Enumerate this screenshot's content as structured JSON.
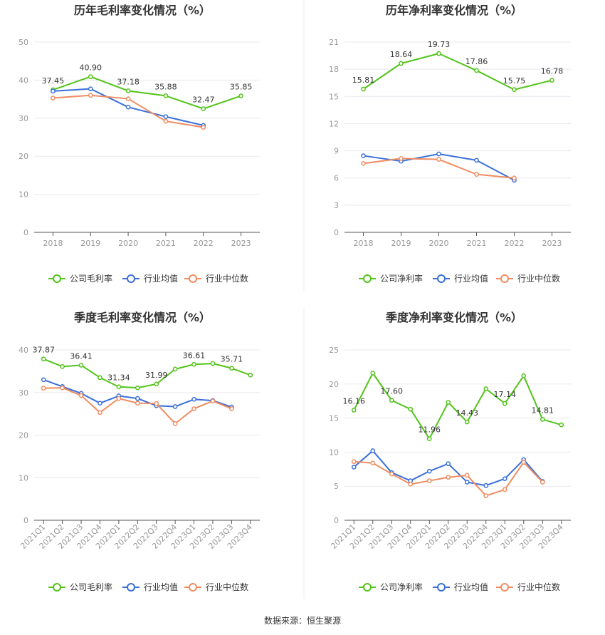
{
  "colors": {
    "company": "#52c41a",
    "avg": "#3a6fdb",
    "median": "#f08c60",
    "grid": "#e8e8f0",
    "axis": "#555555",
    "divider": "#eeeeee"
  },
  "footer": "数据来源：恒生聚源",
  "chart_data": [
    {
      "type": "line",
      "title": "历年毛利率变化情况（%）",
      "categories": [
        "2018",
        "2019",
        "2020",
        "2021",
        "2022",
        "2023"
      ],
      "y_ticks": [
        "0",
        "10",
        "20",
        "30",
        "40",
        "50"
      ],
      "ylim": [
        0,
        50
      ],
      "legend": [
        "公司毛利率",
        "行业均值",
        "行业中位数"
      ],
      "legend_position": "bottom",
      "grid": true,
      "series": [
        {
          "name": "公司毛利率",
          "values": [
            37.45,
            40.9,
            37.18,
            35.88,
            32.47,
            35.85
          ],
          "labels": [
            "37.45",
            "40.90",
            "37.18",
            "35.88",
            "32.47",
            "35.85"
          ]
        },
        {
          "name": "行业均值",
          "values": [
            37.1,
            37.7,
            32.9,
            30.4,
            28.1,
            null
          ]
        },
        {
          "name": "行业中位数",
          "values": [
            35.3,
            36.0,
            35.1,
            29.2,
            27.6,
            null
          ]
        }
      ]
    },
    {
      "type": "line",
      "title": "历年净利率变化情况（%）",
      "categories": [
        "2018",
        "2019",
        "2020",
        "2021",
        "2022",
        "2023"
      ],
      "y_ticks": [
        "0",
        "3",
        "6",
        "9",
        "12",
        "15",
        "18",
        "21"
      ],
      "ylim": [
        0,
        21
      ],
      "legend": [
        "公司净利率",
        "行业均值",
        "行业中位数"
      ],
      "legend_position": "bottom",
      "grid": true,
      "series": [
        {
          "name": "公司净利率",
          "values": [
            15.81,
            18.64,
            19.73,
            17.86,
            15.75,
            16.78
          ],
          "labels": [
            "15.81",
            "18.64",
            "19.73",
            "17.86",
            "15.75",
            "16.78"
          ]
        },
        {
          "name": "行业均值",
          "values": [
            8.45,
            7.85,
            8.65,
            7.95,
            5.75,
            null
          ]
        },
        {
          "name": "行业中位数",
          "values": [
            7.6,
            8.15,
            8.05,
            6.4,
            6.0,
            null
          ]
        }
      ]
    },
    {
      "type": "line",
      "title": "季度毛利率变化情况（%）",
      "categories": [
        "2021Q1",
        "2021Q2",
        "2021Q3",
        "2021Q4",
        "2022Q1",
        "2022Q2",
        "2022Q3",
        "2022Q4",
        "2023Q1",
        "2023Q2",
        "2023Q3",
        "2023Q4"
      ],
      "y_ticks": [
        "0",
        "10",
        "20",
        "30",
        "40"
      ],
      "ylim": [
        0,
        40
      ],
      "legend": [
        "公司毛利率",
        "行业均值",
        "行业中位数"
      ],
      "legend_position": "bottom",
      "grid": true,
      "series": [
        {
          "name": "公司毛利率",
          "values": [
            37.87,
            36.1,
            36.41,
            33.5,
            31.34,
            31.1,
            31.99,
            35.5,
            36.61,
            36.8,
            35.71,
            34.1
          ],
          "labels": [
            "37.87",
            "",
            "36.41",
            "",
            "31.34",
            "",
            "31.99",
            "",
            "36.61",
            "",
            "35.71",
            ""
          ]
        },
        {
          "name": "行业均值",
          "values": [
            33.0,
            31.4,
            29.8,
            27.5,
            29.2,
            28.6,
            26.9,
            26.7,
            28.4,
            28.1,
            26.6,
            null
          ]
        },
        {
          "name": "行业中位数",
          "values": [
            31.0,
            31.1,
            29.3,
            25.3,
            28.6,
            27.5,
            27.4,
            22.7,
            26.2,
            28.0,
            26.2,
            null
          ]
        }
      ]
    },
    {
      "type": "line",
      "title": "季度净利率变化情况（%）",
      "categories": [
        "2021Q1",
        "2021Q2",
        "2021Q3",
        "2021Q4",
        "2022Q1",
        "2022Q2",
        "2022Q3",
        "2022Q4",
        "2023Q1",
        "2023Q2",
        "2023Q3",
        "2023Q4"
      ],
      "y_ticks": [
        "0",
        "5",
        "10",
        "15",
        "20",
        "25"
      ],
      "ylim": [
        0,
        25
      ],
      "legend": [
        "公司净利率",
        "行业均值",
        "行业中位数"
      ],
      "legend_position": "bottom",
      "grid": true,
      "series": [
        {
          "name": "公司净利率",
          "values": [
            16.16,
            21.6,
            17.6,
            16.3,
            11.96,
            17.3,
            14.43,
            19.3,
            17.14,
            21.2,
            14.81,
            14.0
          ],
          "labels": [
            "16.16",
            "",
            "17.60",
            "",
            "11.96",
            "",
            "14.43",
            "",
            "17.14",
            "",
            "14.81",
            ""
          ]
        },
        {
          "name": "行业均值",
          "values": [
            7.8,
            10.2,
            7.0,
            5.8,
            7.2,
            8.3,
            5.6,
            5.1,
            6.1,
            8.9,
            5.7,
            null
          ]
        },
        {
          "name": "行业中位数",
          "values": [
            8.6,
            8.4,
            6.8,
            5.3,
            5.8,
            6.3,
            6.6,
            3.6,
            4.5,
            8.5,
            5.6,
            null
          ]
        }
      ]
    }
  ]
}
